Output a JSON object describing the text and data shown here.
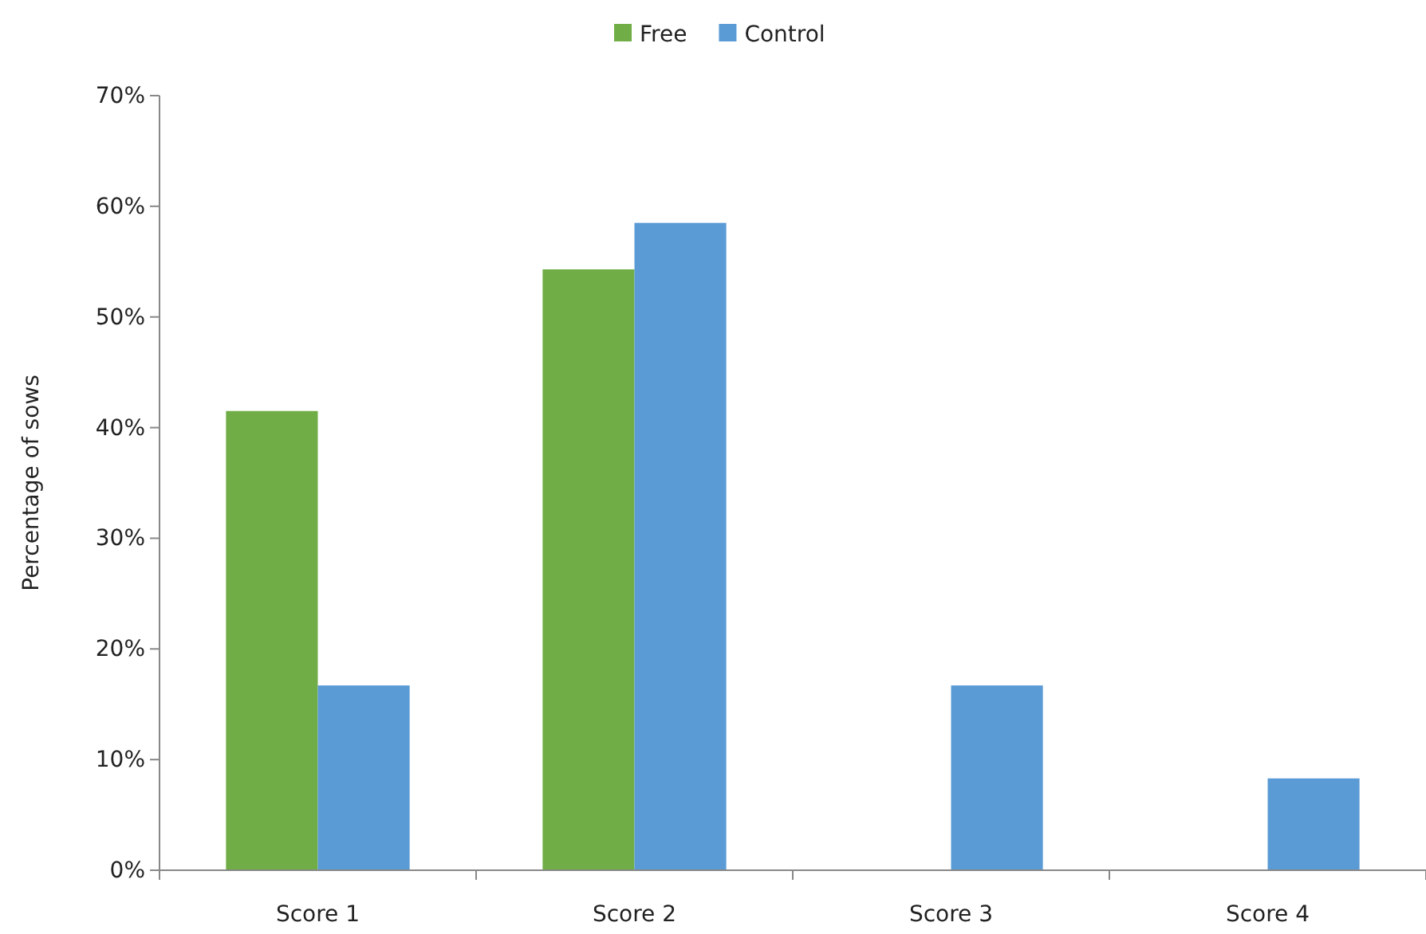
{
  "chart_data": {
    "type": "bar",
    "ylabel": "Percentage of sows",
    "categories": [
      "Score 1",
      "Score 2",
      "Score 3",
      "Score 4"
    ],
    "series": [
      {
        "name": "Free",
        "color": "#70ad47",
        "values": [
          41.5,
          54.3,
          0,
          0
        ]
      },
      {
        "name": "Control",
        "color": "#5b9bd5",
        "values": [
          16.7,
          58.5,
          16.7,
          8.3
        ]
      }
    ],
    "ylim": [
      0,
      70
    ],
    "yticks": [
      {
        "value": 0,
        "label": "0%"
      },
      {
        "value": 10,
        "label": "10%"
      },
      {
        "value": 20,
        "label": "20%"
      },
      {
        "value": 30,
        "label": "30%"
      },
      {
        "value": 40,
        "label": "40%"
      },
      {
        "value": 50,
        "label": "50%"
      },
      {
        "value": 60,
        "label": "60%"
      },
      {
        "value": 70,
        "label": "70%"
      }
    ],
    "grid": false,
    "legend": "top"
  }
}
